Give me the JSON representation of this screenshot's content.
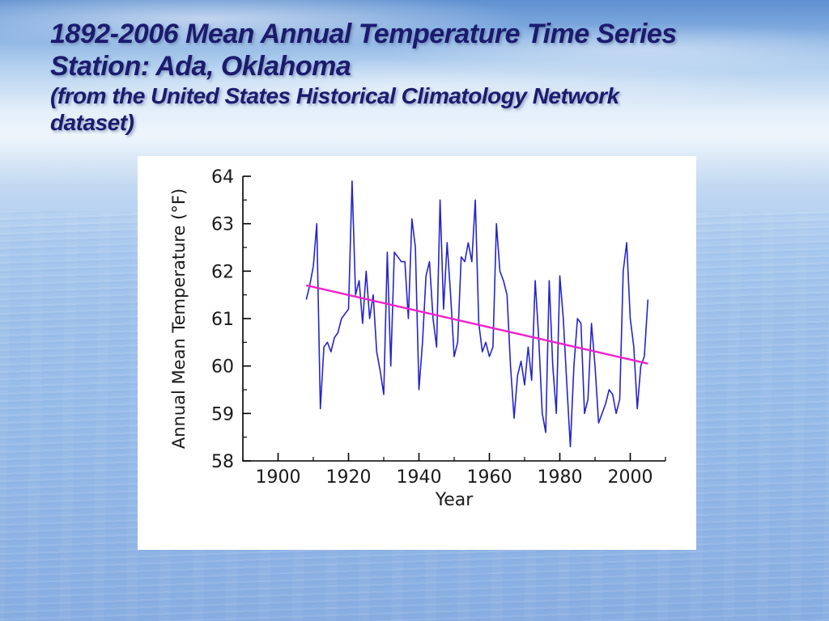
{
  "slide": {
    "title_line1": "1892-2006 Mean Annual Temperature Time Series",
    "title_line2": "Station: Ada, Oklahoma",
    "subtitle_line1": "(from the United States Historical Climatology Network",
    "subtitle_line2": "dataset)",
    "title_color": "#1b1b6e",
    "background_color": "#9dc0ea",
    "panel_color": "#ffffff"
  },
  "chart_data": {
    "type": "line",
    "title": "",
    "xlabel": "Year",
    "ylabel": "Annual Mean Temperature (°F)",
    "xlim": [
      1890,
      2010
    ],
    "ylim": [
      58,
      64
    ],
    "xticks": [
      1900,
      1920,
      1940,
      1960,
      1980,
      2000
    ],
    "yticks": [
      58,
      59,
      60,
      61,
      62,
      63,
      64
    ],
    "grid": false,
    "legend": "none",
    "axis_color": "#000000",
    "series": [
      {
        "name": "annual-mean-temperature",
        "color": "#2424cc",
        "width": 1.6,
        "x": [
          1908,
          1909,
          1910,
          1911,
          1912,
          1913,
          1914,
          1915,
          1916,
          1917,
          1918,
          1919,
          1920,
          1921,
          1922,
          1923,
          1924,
          1925,
          1926,
          1927,
          1928,
          1929,
          1930,
          1931,
          1932,
          1933,
          1934,
          1935,
          1936,
          1937,
          1938,
          1939,
          1940,
          1941,
          1942,
          1943,
          1944,
          1945,
          1946,
          1947,
          1948,
          1949,
          1950,
          1951,
          1952,
          1953,
          1954,
          1955,
          1956,
          1957,
          1958,
          1959,
          1960,
          1961,
          1962,
          1963,
          1964,
          1965,
          1966,
          1967,
          1968,
          1969,
          1970,
          1971,
          1972,
          1973,
          1974,
          1975,
          1976,
          1977,
          1978,
          1979,
          1980,
          1981,
          1982,
          1983,
          1984,
          1985,
          1986,
          1987,
          1988,
          1989,
          1990,
          1991,
          1992,
          1993,
          1994,
          1995,
          1996,
          1997,
          1998,
          1999,
          2000,
          2001,
          2002,
          2003,
          2004,
          2005
        ],
        "y": [
          61.4,
          61.7,
          62.1,
          63.0,
          59.1,
          60.4,
          60.5,
          60.3,
          60.6,
          60.7,
          61.0,
          61.1,
          61.2,
          63.9,
          61.5,
          61.8,
          60.9,
          62.0,
          61.0,
          61.5,
          60.3,
          59.9,
          59.4,
          62.4,
          60.0,
          62.4,
          62.3,
          62.2,
          62.2,
          61.0,
          63.1,
          62.5,
          59.5,
          60.5,
          61.9,
          62.2,
          61.0,
          60.4,
          63.5,
          61.2,
          62.6,
          61.5,
          60.2,
          60.5,
          62.3,
          62.2,
          62.6,
          62.2,
          63.5,
          60.9,
          60.3,
          60.5,
          60.2,
          60.4,
          63.0,
          62.0,
          61.8,
          61.5,
          60.0,
          58.9,
          59.8,
          60.1,
          59.6,
          60.4,
          59.7,
          61.8,
          60.6,
          59.0,
          58.6,
          61.8,
          60.0,
          59.0,
          61.9,
          61.0,
          59.6,
          58.3,
          60.0,
          61.0,
          60.9,
          59.0,
          59.3,
          60.9,
          60.0,
          58.8,
          59.0,
          59.2,
          59.5,
          59.4,
          59.0,
          59.3,
          62.0,
          62.6,
          61.0,
          60.4,
          59.1,
          60.0,
          60.2,
          61.4
        ]
      },
      {
        "name": "linear-trend",
        "color": "#ee22cc",
        "width": 2.4,
        "x": [
          1908,
          2005
        ],
        "y": [
          61.7,
          60.05
        ]
      }
    ]
  }
}
